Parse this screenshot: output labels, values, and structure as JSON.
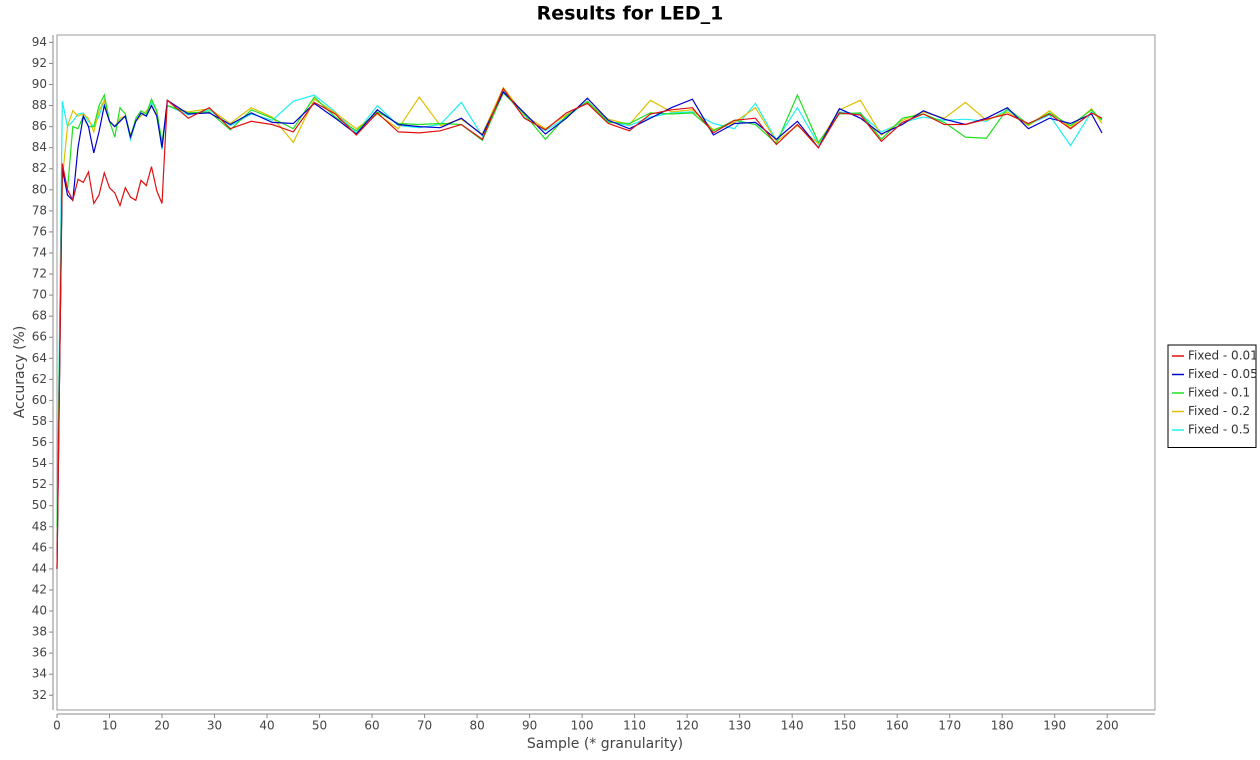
{
  "chart_data": {
    "type": "line",
    "title": "Results for LED_1",
    "xlabel": "Sample (* granularity)",
    "ylabel": "Accuracy (%)",
    "x": [
      0,
      1,
      2,
      3,
      4,
      5,
      6,
      7,
      8,
      9,
      10,
      11,
      12,
      13,
      14,
      15,
      16,
      17,
      18,
      19,
      20,
      21,
      25,
      29,
      33,
      37,
      41,
      45,
      49,
      53,
      57,
      61,
      65,
      69,
      73,
      77,
      81,
      85,
      89,
      93,
      97,
      101,
      105,
      109,
      113,
      117,
      121,
      125,
      129,
      133,
      137,
      141,
      145,
      149,
      153,
      157,
      161,
      165,
      169,
      173,
      177,
      181,
      185,
      189,
      193,
      197,
      199
    ],
    "series": [
      {
        "name": "Fixed - 0.01",
        "color": "#e01010",
        "values": [
          44,
          82.5,
          80,
          79,
          81,
          80.7,
          81.7,
          78.7,
          79.5,
          81.6,
          80.2,
          79.7,
          78.5,
          80.2,
          79.3,
          79,
          80.9,
          80.4,
          82.2,
          79.9,
          78.7,
          88.5,
          86.8,
          87.8,
          85.8,
          86.5,
          86.2,
          85.5,
          88.3,
          87.2,
          85.2,
          87.3,
          85.5,
          85.4,
          85.6,
          86.2,
          84.8,
          89.6,
          86.8,
          85.7,
          87.3,
          88.2,
          86.3,
          85.6,
          87.2,
          87.6,
          87.8,
          85.4,
          86.6,
          86.8,
          84.3,
          86.2,
          84,
          87.3,
          87.1,
          84.6,
          86.4,
          87.2,
          86.2,
          86.2,
          86.7,
          87.2,
          86.3,
          87.2,
          85.8,
          87.3,
          86.8
        ]
      },
      {
        "name": "Fixed - 0.05",
        "color": "#0000cc",
        "values": [
          44,
          82,
          79.5,
          79,
          84,
          87,
          86,
          83.5,
          85.5,
          88,
          86.5,
          86,
          86.5,
          87,
          85,
          86.5,
          87.3,
          87,
          88,
          87,
          84,
          88.5,
          87.2,
          87.3,
          86.2,
          87.3,
          86.4,
          86.3,
          88.2,
          86.8,
          85.3,
          87.6,
          86.2,
          86,
          85.9,
          86.8,
          85.2,
          89.3,
          87.3,
          85.3,
          86.8,
          88.7,
          86.6,
          85.8,
          86.8,
          87.8,
          88.6,
          85.2,
          86.3,
          86.4,
          84.8,
          86.5,
          84,
          87.7,
          86.8,
          85.3,
          86.2,
          87.5,
          86.7,
          86.2,
          86.8,
          87.8,
          85.8,
          86.8,
          86.3,
          87.2,
          85.4
        ]
      },
      {
        "name": "Fixed - 0.1",
        "color": "#20e020",
        "values": [
          48,
          82,
          80,
          86,
          85.8,
          87,
          86,
          86,
          88,
          89,
          86.5,
          85,
          87.8,
          87.2,
          85,
          86.8,
          87.5,
          87.2,
          88.6,
          87.5,
          84.5,
          88,
          87.3,
          87.4,
          85.7,
          87.6,
          86.8,
          85.8,
          88.8,
          86.9,
          85.6,
          87.4,
          86.3,
          86.2,
          86.3,
          86.2,
          84.7,
          89.2,
          87.2,
          84.8,
          87,
          88.4,
          86.4,
          86.3,
          87.3,
          87.2,
          87.3,
          85.6,
          86.6,
          86.2,
          84.4,
          89,
          84.5,
          87.2,
          87.3,
          84.8,
          86.8,
          87.2,
          86.4,
          85,
          84.9,
          87.7,
          86.2,
          87.3,
          86.1,
          87.6,
          86.6
        ]
      },
      {
        "name": "Fixed - 0.2",
        "color": "#e0c000",
        "values": [
          46,
          81,
          86,
          87.5,
          87,
          87.2,
          86.8,
          85.5,
          87.5,
          88.5,
          86.5,
          86,
          86.8,
          87,
          85.2,
          86.5,
          87,
          87.5,
          88,
          87.2,
          84.2,
          88,
          87.4,
          87.7,
          86.3,
          87.8,
          86.9,
          84.5,
          88.6,
          87.3,
          85.8,
          87.2,
          85.8,
          88.8,
          86.1,
          86.7,
          85.3,
          89.7,
          87.1,
          85.8,
          87.1,
          88.3,
          86.7,
          86.2,
          88.5,
          87.4,
          87.6,
          85.7,
          86.4,
          87.8,
          84.6,
          86.1,
          84.4,
          87.6,
          88.5,
          85.2,
          86.6,
          87.4,
          86.8,
          88.3,
          86.6,
          87.4,
          86.1,
          87.5,
          85.9,
          87.7,
          86.3
        ]
      },
      {
        "name": "Fixed - 0.5",
        "color": "#20f0f0",
        "values": [
          47,
          88.4,
          86,
          86.5,
          87.2,
          87.3,
          86.5,
          86,
          87,
          88.5,
          86.5,
          86,
          86.6,
          87,
          84.8,
          86.5,
          87.2,
          87,
          88.3,
          87.5,
          83.8,
          88,
          87.1,
          87.6,
          86.1,
          87.2,
          86.6,
          88.4,
          89,
          87.4,
          85.4,
          88,
          86.1,
          85.9,
          86.2,
          88.3,
          85.1,
          89.4,
          86.9,
          85.6,
          86.9,
          88.4,
          86.5,
          86.1,
          86.9,
          87.3,
          87.4,
          86.3,
          85.8,
          88.2,
          84.7,
          87.8,
          84.3,
          87.4,
          87.2,
          85.5,
          86.4,
          86.9,
          86.6,
          86.7,
          86.5,
          87.6,
          86.2,
          87.1,
          84.2,
          87.4,
          86.7
        ]
      }
    ],
    "xlim": [
      0,
      209.1
    ],
    "ylim": [
      30.6,
      94.7
    ],
    "xticks": [
      0,
      10,
      20,
      30,
      40,
      50,
      60,
      70,
      80,
      90,
      100,
      110,
      120,
      130,
      140,
      150,
      160,
      170,
      180,
      190,
      200
    ],
    "yticks": [
      32,
      34,
      36,
      38,
      40,
      42,
      44,
      46,
      48,
      50,
      52,
      54,
      56,
      58,
      60,
      62,
      64,
      66,
      68,
      70,
      72,
      74,
      76,
      78,
      80,
      82,
      84,
      86,
      88,
      90,
      92,
      94
    ],
    "legend": "right"
  }
}
